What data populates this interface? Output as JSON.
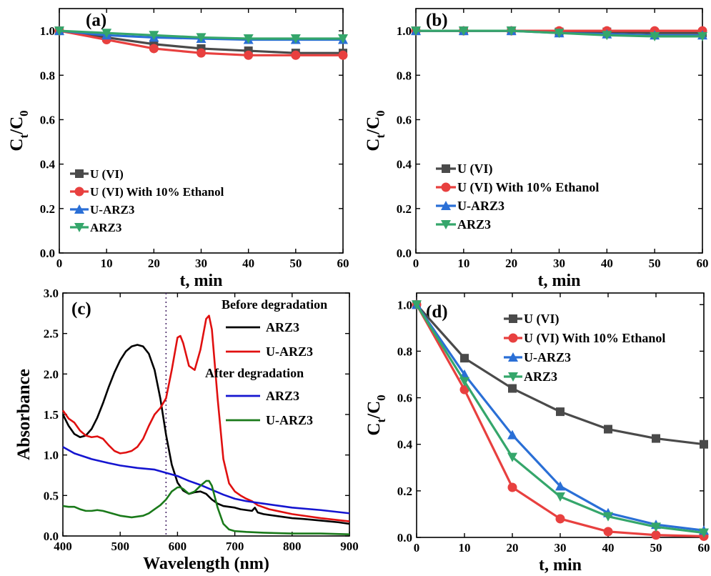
{
  "series_colors": {
    "U (VI)": "#4a4a4a",
    "U (VI) With 10% Ethanol": "#e8403f",
    "U-ARZ3": "#2a6fd6",
    "ARZ3": "#35a66b",
    "ARZ3 before": "#000000",
    "U-ARZ3 before": "#e01010",
    "ARZ3 after": "#1515d0",
    "U-ARZ3 after": "#1a7a1a",
    "dotted_line": "#4a2a6a"
  },
  "chart_data": [
    {
      "id": "a",
      "panel_label": "(a)",
      "type": "line",
      "xlabel": "t, min",
      "ylabel_main": "C",
      "ylabel_sub1": "t",
      "ylabel_mid": "/C",
      "ylabel_sub2": "0",
      "xlim": [
        0,
        60
      ],
      "ylim": [
        0,
        1.1
      ],
      "xticks": [
        0,
        10,
        20,
        30,
        40,
        50,
        60
      ],
      "yticks": [
        0.0,
        0.2,
        0.4,
        0.6,
        0.8,
        1.0
      ],
      "ytick_labels": [
        "0.0",
        "0.2",
        "0.4",
        "0.6",
        "0.8",
        "1.0"
      ],
      "legend_position": "lower-left",
      "series": [
        {
          "name": "U (VI)",
          "marker": "square",
          "x": [
            0,
            10,
            20,
            30,
            40,
            50,
            60
          ],
          "y": [
            1.0,
            0.97,
            0.94,
            0.92,
            0.91,
            0.9,
            0.9
          ]
        },
        {
          "name": "U (VI) With 10% Ethanol",
          "marker": "circle",
          "x": [
            0,
            10,
            20,
            30,
            40,
            50,
            60
          ],
          "y": [
            1.0,
            0.96,
            0.92,
            0.9,
            0.89,
            0.89,
            0.89
          ]
        },
        {
          "name": "U-ARZ3",
          "marker": "triangle-up",
          "x": [
            0,
            10,
            20,
            30,
            40,
            50,
            60
          ],
          "y": [
            1.0,
            0.98,
            0.97,
            0.965,
            0.96,
            0.96,
            0.96
          ]
        },
        {
          "name": "ARZ3",
          "marker": "triangle-down",
          "x": [
            0,
            10,
            20,
            30,
            40,
            50,
            60
          ],
          "y": [
            1.0,
            0.99,
            0.98,
            0.97,
            0.965,
            0.965,
            0.965
          ]
        }
      ]
    },
    {
      "id": "b",
      "panel_label": "(b)",
      "type": "line",
      "xlabel": "t, min",
      "ylabel_main": "C",
      "ylabel_sub1": "t",
      "ylabel_mid": "/C",
      "ylabel_sub2": "0",
      "xlim": [
        0,
        60
      ],
      "ylim": [
        0,
        1.1
      ],
      "xticks": [
        0,
        10,
        20,
        30,
        40,
        50,
        60
      ],
      "yticks": [
        0.0,
        0.2,
        0.4,
        0.6,
        0.8,
        1.0
      ],
      "ytick_labels": [
        "0.0",
        "0.2",
        "0.4",
        "0.6",
        "0.8",
        "1.0"
      ],
      "legend_position": "middle-left",
      "series": [
        {
          "name": "U (VI)",
          "marker": "square",
          "x": [
            0,
            10,
            20,
            30,
            40,
            50,
            60
          ],
          "y": [
            1.0,
            1.0,
            1.0,
            0.995,
            0.995,
            0.99,
            0.99
          ]
        },
        {
          "name": "U (VI) With 10% Ethanol",
          "marker": "circle",
          "x": [
            0,
            10,
            20,
            30,
            40,
            50,
            60
          ],
          "y": [
            1.0,
            1.0,
            1.0,
            1.0,
            1.0,
            1.0,
            1.0
          ]
        },
        {
          "name": "U-ARZ3",
          "marker": "triangle-up",
          "x": [
            0,
            10,
            20,
            30,
            40,
            50,
            60
          ],
          "y": [
            1.0,
            1.0,
            1.0,
            0.99,
            0.985,
            0.98,
            0.98
          ]
        },
        {
          "name": "ARZ3",
          "marker": "triangle-down",
          "x": [
            0,
            10,
            20,
            30,
            40,
            50,
            60
          ],
          "y": [
            1.0,
            1.0,
            1.0,
            0.99,
            0.98,
            0.975,
            0.975
          ]
        }
      ]
    },
    {
      "id": "c",
      "panel_label": "(c)",
      "type": "line",
      "xlabel": "Wavelength (nm)",
      "ylabel": "Absorbance",
      "xlim": [
        400,
        900
      ],
      "ylim": [
        0,
        3.0
      ],
      "xticks": [
        400,
        500,
        600,
        700,
        800,
        900
      ],
      "yticks": [
        0.0,
        0.5,
        1.0,
        1.5,
        2.0,
        2.5,
        3.0
      ],
      "ytick_labels": [
        "0.0",
        "0.5",
        "1.0",
        "1.5",
        "2.0",
        "2.5",
        "3.0"
      ],
      "vertical_dotted_line_x": 580,
      "legend_position": "top-right",
      "legend_groups": [
        {
          "title": "Before degradation",
          "entries": [
            "ARZ3",
            "U-ARZ3"
          ]
        },
        {
          "title": "After degradation",
          "entries": [
            "ARZ3",
            "U-ARZ3"
          ]
        }
      ],
      "series": [
        {
          "name": "ARZ3",
          "group": "Before degradation",
          "color_key": "ARZ3 before",
          "x": [
            400,
            410,
            420,
            430,
            440,
            450,
            460,
            470,
            480,
            490,
            500,
            510,
            520,
            530,
            540,
            550,
            560,
            570,
            580,
            590,
            600,
            610,
            620,
            630,
            640,
            650,
            660,
            670,
            680,
            690,
            700,
            710,
            720,
            730,
            735,
            740,
            750,
            760,
            780,
            800,
            820,
            850,
            880,
            900
          ],
          "y": [
            1.5,
            1.36,
            1.26,
            1.22,
            1.24,
            1.32,
            1.46,
            1.64,
            1.84,
            2.02,
            2.17,
            2.28,
            2.34,
            2.36,
            2.34,
            2.25,
            2.05,
            1.7,
            1.25,
            0.88,
            0.66,
            0.56,
            0.52,
            0.54,
            0.55,
            0.52,
            0.45,
            0.4,
            0.37,
            0.36,
            0.35,
            0.33,
            0.32,
            0.31,
            0.35,
            0.29,
            0.27,
            0.26,
            0.24,
            0.22,
            0.21,
            0.19,
            0.17,
            0.15
          ]
        },
        {
          "name": "U-ARZ3",
          "group": "Before degradation",
          "color_key": "U-ARZ3 before",
          "x": [
            400,
            410,
            420,
            430,
            440,
            450,
            460,
            470,
            480,
            490,
            500,
            510,
            520,
            530,
            540,
            550,
            560,
            570,
            580,
            590,
            600,
            605,
            610,
            620,
            630,
            640,
            650,
            655,
            660,
            670,
            680,
            690,
            700,
            710,
            720,
            730,
            740,
            760,
            800,
            850,
            900
          ],
          "y": [
            1.55,
            1.45,
            1.4,
            1.3,
            1.24,
            1.22,
            1.23,
            1.2,
            1.12,
            1.05,
            1.02,
            1.03,
            1.05,
            1.1,
            1.2,
            1.36,
            1.5,
            1.58,
            1.7,
            2.05,
            2.45,
            2.47,
            2.38,
            2.1,
            2.05,
            2.3,
            2.68,
            2.72,
            2.55,
            1.7,
            0.95,
            0.65,
            0.55,
            0.5,
            0.46,
            0.43,
            0.38,
            0.33,
            0.27,
            0.22,
            0.18
          ]
        },
        {
          "name": "ARZ3",
          "group": "After degradation",
          "color_key": "ARZ3 after",
          "x": [
            400,
            420,
            450,
            480,
            500,
            530,
            560,
            580,
            600,
            620,
            640,
            660,
            680,
            700,
            720,
            750,
            780,
            800,
            850,
            900
          ],
          "y": [
            1.1,
            1.02,
            0.95,
            0.9,
            0.87,
            0.84,
            0.82,
            0.78,
            0.74,
            0.68,
            0.63,
            0.57,
            0.51,
            0.46,
            0.43,
            0.4,
            0.37,
            0.35,
            0.32,
            0.28
          ]
        },
        {
          "name": "U-ARZ3",
          "group": "After degradation",
          "color_key": "U-ARZ3 after",
          "x": [
            400,
            410,
            420,
            430,
            440,
            450,
            460,
            470,
            480,
            490,
            500,
            510,
            520,
            530,
            540,
            550,
            560,
            570,
            580,
            590,
            600,
            605,
            610,
            620,
            630,
            640,
            650,
            655,
            660,
            670,
            680,
            690,
            700,
            720,
            750,
            800,
            850,
            900
          ],
          "y": [
            0.37,
            0.36,
            0.36,
            0.33,
            0.31,
            0.31,
            0.32,
            0.31,
            0.29,
            0.27,
            0.25,
            0.24,
            0.23,
            0.24,
            0.25,
            0.28,
            0.33,
            0.38,
            0.45,
            0.55,
            0.6,
            0.6,
            0.58,
            0.52,
            0.55,
            0.62,
            0.68,
            0.68,
            0.62,
            0.35,
            0.15,
            0.08,
            0.06,
            0.05,
            0.04,
            0.03,
            0.03,
            0.02
          ]
        }
      ]
    },
    {
      "id": "d",
      "panel_label": "(d)",
      "type": "line",
      "xlabel": "t, min",
      "ylabel_main": "C",
      "ylabel_sub1": "t",
      "ylabel_mid": "/C",
      "ylabel_sub2": "0",
      "xlim": [
        0,
        60
      ],
      "ylim": [
        0,
        1.05
      ],
      "xticks": [
        0,
        10,
        20,
        30,
        40,
        50,
        60
      ],
      "yticks": [
        0.0,
        0.2,
        0.4,
        0.6,
        0.8,
        1.0
      ],
      "ytick_labels": [
        "0.0",
        "0.2",
        "0.4",
        "0.6",
        "0.8",
        "1.0"
      ],
      "legend_position": "top-right",
      "series": [
        {
          "name": "U (VI)",
          "marker": "square",
          "x": [
            0,
            10,
            20,
            30,
            40,
            50,
            60
          ],
          "y": [
            1.0,
            0.77,
            0.64,
            0.54,
            0.465,
            0.425,
            0.4
          ]
        },
        {
          "name": "U (VI) With 10% Ethanol",
          "marker": "circle",
          "x": [
            0,
            10,
            20,
            30,
            40,
            50,
            60
          ],
          "y": [
            1.0,
            0.635,
            0.215,
            0.08,
            0.025,
            0.01,
            0.005
          ]
        },
        {
          "name": "U-ARZ3",
          "marker": "triangle-up",
          "x": [
            0,
            10,
            20,
            30,
            40,
            50,
            60
          ],
          "y": [
            1.0,
            0.7,
            0.44,
            0.22,
            0.105,
            0.055,
            0.03
          ]
        },
        {
          "name": "ARZ3",
          "marker": "triangle-down",
          "x": [
            0,
            10,
            20,
            30,
            40,
            50,
            60
          ],
          "y": [
            1.0,
            0.67,
            0.345,
            0.175,
            0.09,
            0.045,
            0.02
          ]
        }
      ]
    }
  ]
}
